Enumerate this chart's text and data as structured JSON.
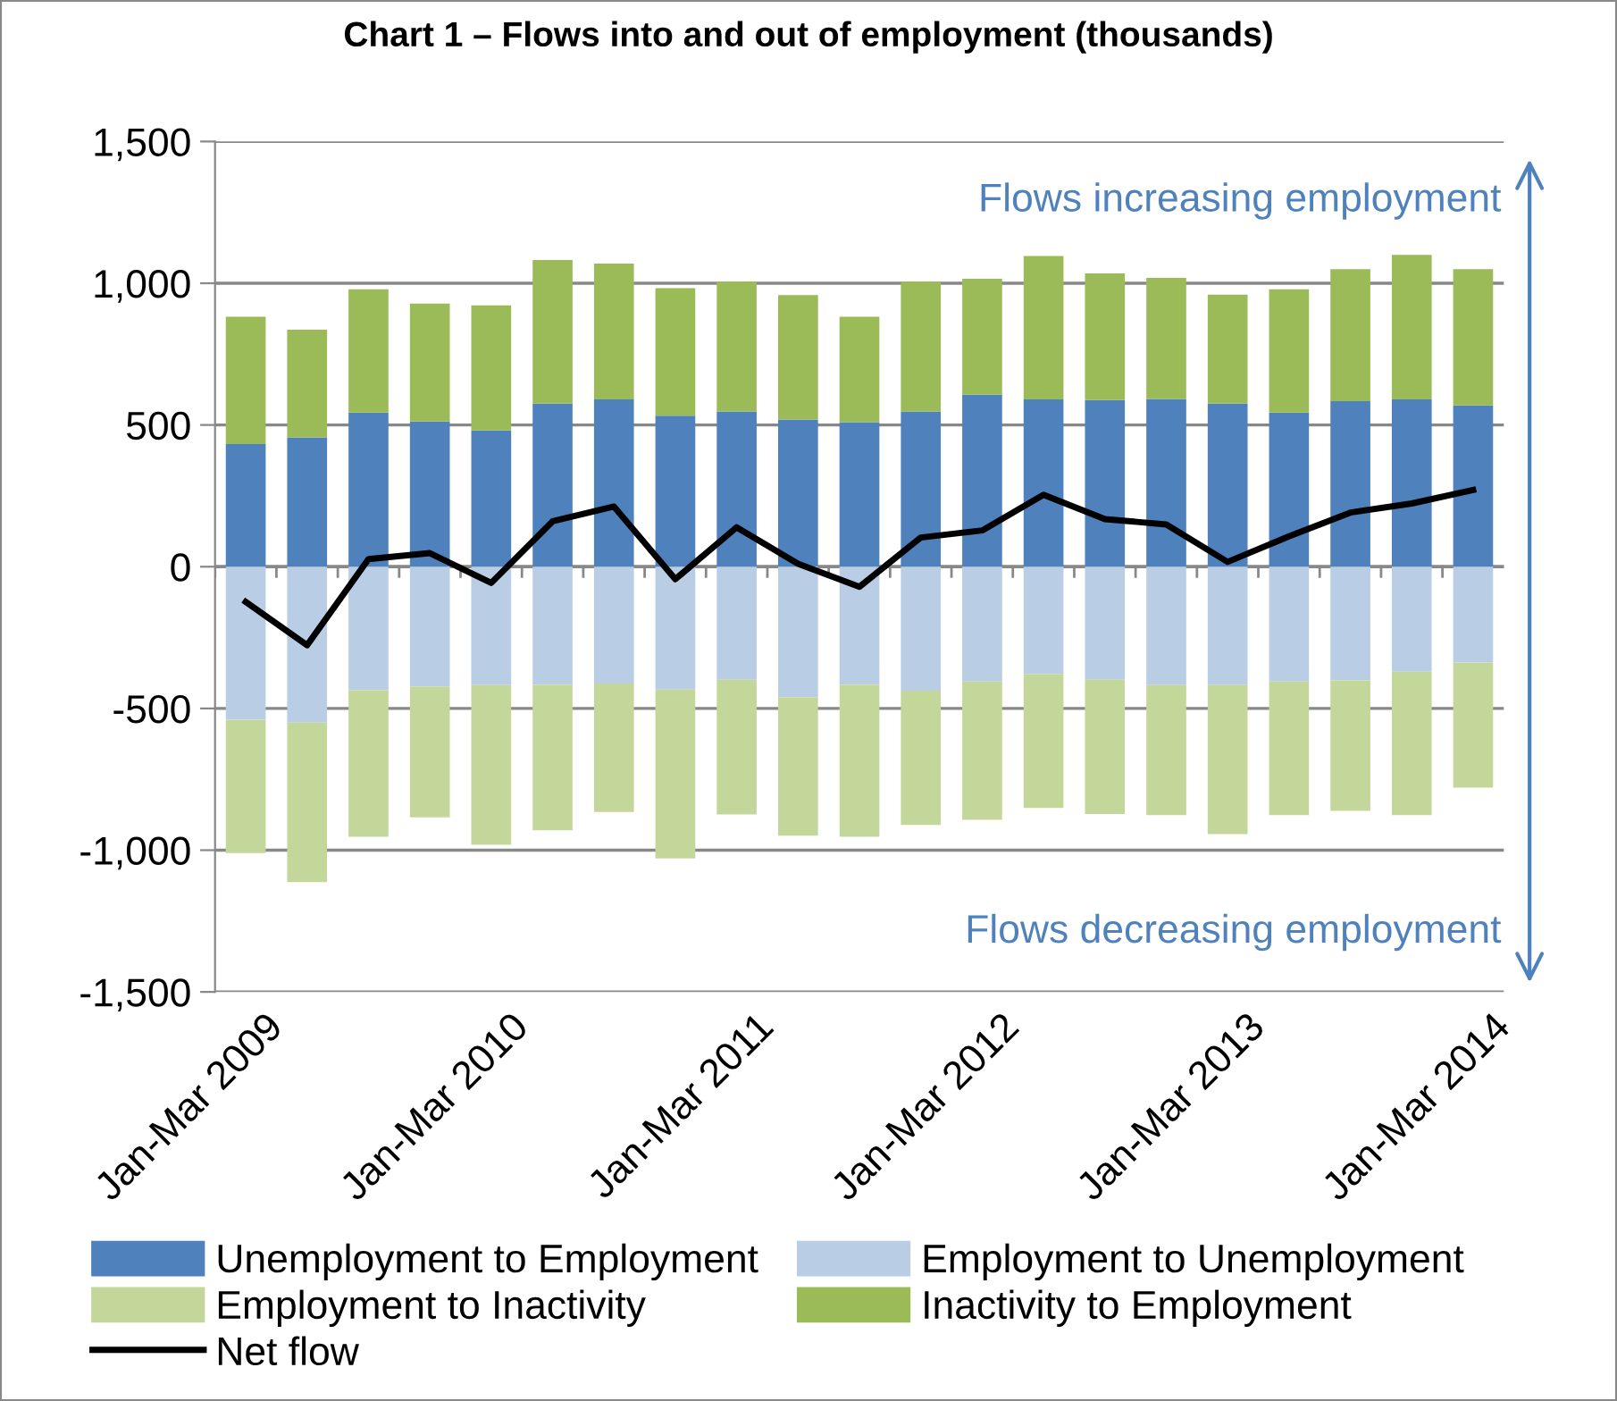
{
  "chart_data": {
    "type": "bar",
    "stacked": true,
    "title": "Chart 1 – Flows into and out of employment (thousands)",
    "categories": [
      "Jan-Mar 2009",
      null,
      null,
      null,
      "Jan-Mar 2010",
      null,
      null,
      null,
      "Jan-Mar 2011",
      null,
      null,
      null,
      "Jan-Mar 2012",
      null,
      null,
      null,
      "Jan-Mar 2013",
      null,
      null,
      null,
      "Jan-Mar 2014"
    ],
    "series": [
      {
        "name": "Unemployment to Employment",
        "color": "#4f81bd",
        "values": [
          433,
          456,
          544,
          512,
          481,
          575,
          590,
          533,
          548,
          519,
          510,
          548,
          607,
          590,
          588,
          592,
          575,
          544,
          584,
          590,
          569
        ]
      },
      {
        "name": "Employment to Unemployment",
        "color": "#b9cde5",
        "values": [
          -540,
          -550,
          -435,
          -422,
          -418,
          -416,
          -412,
          -433,
          -399,
          -460,
          -416,
          -437,
          -405,
          -378,
          -399,
          -418,
          -418,
          -405,
          -401,
          -370,
          -338
        ]
      },
      {
        "name": "Employment to Inactivity",
        "color": "#c4d79b",
        "values": [
          -470,
          -563,
          -518,
          -462,
          -563,
          -514,
          -453,
          -596,
          -475,
          -489,
          -537,
          -474,
          -488,
          -473,
          -473,
          -458,
          -525,
          -471,
          -460,
          -506,
          -441
        ]
      },
      {
        "name": "Inactivity to Employment",
        "color": "#9bbb59",
        "values": [
          449,
          380,
          435,
          416,
          441,
          507,
          479,
          450,
          458,
          439,
          372,
          458,
          409,
          506,
          447,
          427,
          385,
          435,
          466,
          510,
          481
        ]
      },
      {
        "name": "Net flow",
        "type": "line",
        "color": "#000000",
        "values": [
          -124,
          -277,
          27,
          48,
          -57,
          160,
          212,
          -44,
          139,
          10,
          -71,
          103,
          128,
          254,
          168,
          149,
          17,
          107,
          191,
          223,
          271
        ]
      }
    ],
    "ylim": [
      -1500,
      1500
    ],
    "yticks": [
      {
        "value": -1500,
        "label": "-1,500"
      },
      {
        "value": -1000,
        "label": "-1,000"
      },
      -500,
      0,
      500,
      {
        "value": 1000,
        "label": "1,000"
      },
      {
        "value": 1500,
        "label": "1,500"
      }
    ],
    "grid": "y",
    "legend": "bottom",
    "marker": "none",
    "line_style": "solid",
    "annotations": [
      "Flows increasing employment",
      "Flows decreasing employment"
    ]
  }
}
